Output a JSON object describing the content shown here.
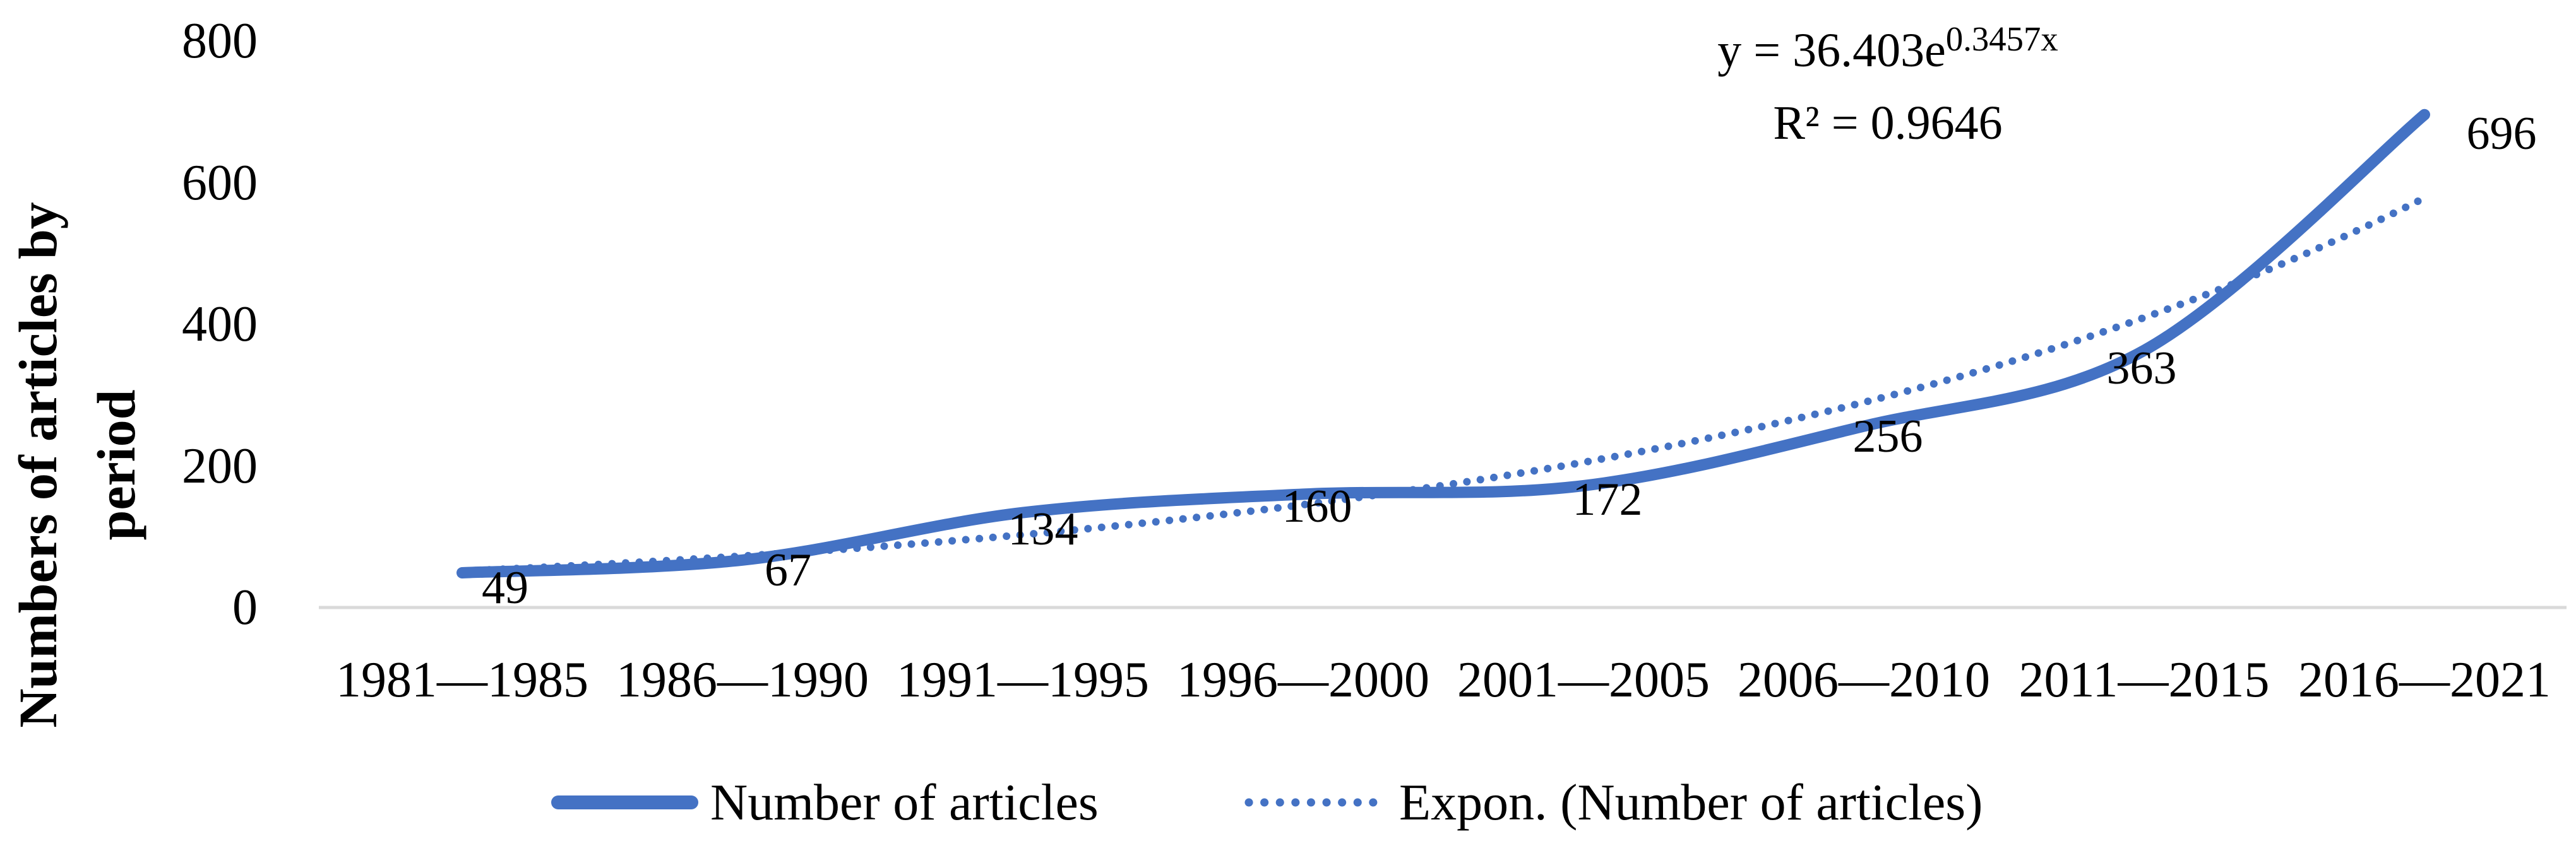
{
  "chart_data": {
    "type": "line",
    "title": "",
    "ylabel": "Numbers of articles by period",
    "ylabel_lines": [
      "Numbers of articles by",
      "period"
    ],
    "xlabel": "",
    "categories": [
      "1981—1985",
      "1986—1990",
      "1991—1995",
      "1996—2000",
      "2001—2005",
      "2006—2010",
      "2011—2015",
      "2016—2021"
    ],
    "series": [
      {
        "name": "Number of articles",
        "values": [
          49,
          67,
          134,
          160,
          172,
          256,
          363,
          696
        ]
      }
    ],
    "show_data_labels": true,
    "trendline": {
      "name": "Expon. (Number of articles)",
      "type": "exponential",
      "coefficient": 36.403,
      "exponent_coefficient": 0.3457,
      "equation": "y = 36.403e^(0.3457x)",
      "equation_base": "y = 36.403e",
      "equation_exponent": "0.3457x",
      "r_squared": "R² = 0.9646",
      "r_squared_value": 0.9646
    },
    "yticks": [
      800,
      600,
      400,
      200,
      0
    ],
    "ylim": [
      0,
      800
    ],
    "grid": false,
    "legend_position": "bottom",
    "legend": [
      "Number of articles",
      "Expon. (Number of articles)"
    ],
    "colors": {
      "series": "#4472C4",
      "trendline": "#4472C4",
      "axis_line": "#D9D9D9",
      "text": "#000000"
    }
  }
}
